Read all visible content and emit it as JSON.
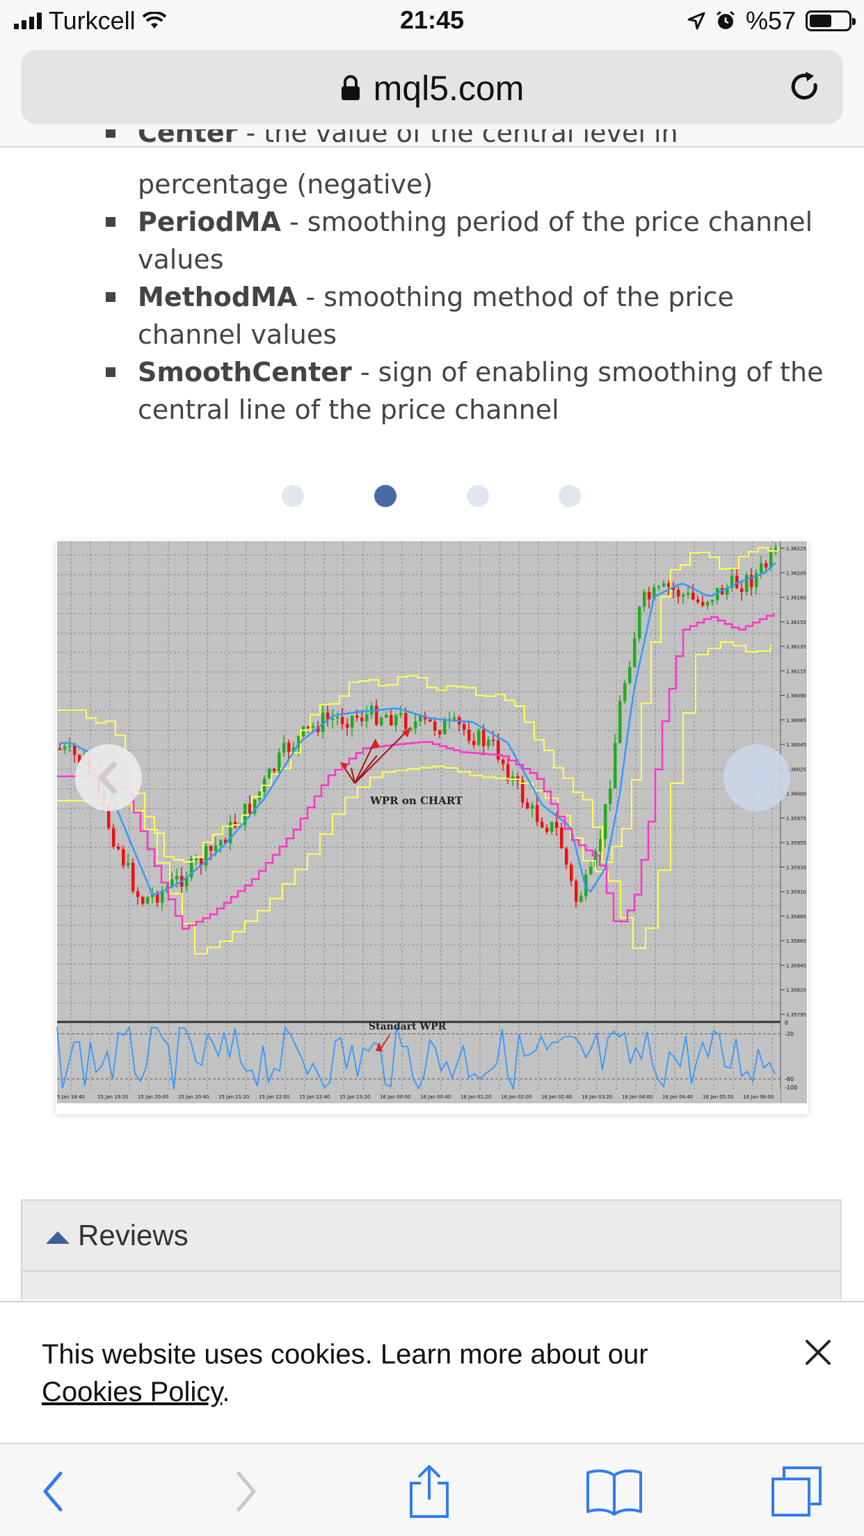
{
  "status_bar": {
    "carrier": "Turkcell",
    "time": "21:45",
    "battery": "%57",
    "battery_level": 0.57
  },
  "url_bar": {
    "domain": "mql5.com"
  },
  "params": {
    "partial": {
      "name": "Center",
      "desc": " - the value of the central level in"
    },
    "items": [
      {
        "name": "",
        "desc": "percentage (negative)"
      },
      {
        "name": "PeriodMA",
        "desc": " - smoothing period of the price channel values"
      },
      {
        "name": "MethodMA",
        "desc": " - smoothing method of the price channel values"
      },
      {
        "name": "SmoothCenter",
        "desc": " - sign of enabling smoothing of the central line of the price channel"
      }
    ]
  },
  "carousel": {
    "active_index": 1,
    "count": 4
  },
  "chart": {
    "main_label": "WPR on CHART",
    "sub_label": "Standart WPR",
    "price_ticks": [
      "1.36225",
      "1.36205",
      "1.36180",
      "1.36155",
      "1.36135",
      "1.36115",
      "1.36090",
      "1.36065",
      "1.36045",
      "1.36025",
      "1.36000",
      "1.35975",
      "1.35955",
      "1.35935",
      "1.35910",
      "1.35885",
      "1.35865",
      "1.35845",
      "1.35820",
      "1.35795"
    ],
    "wpr_ticks": [
      "0",
      "-20",
      "-80",
      "-100"
    ],
    "time_ticks": [
      "5 Jan 18:40",
      "15 Jan 19:20",
      "15 Jan 20:00",
      "15 Jan 20:40",
      "15 Jan 21:20",
      "15 Jan 22:00",
      "15 Jan 22:40",
      "15 Jan 23:20",
      "16 Jan 00:00",
      "16 Jan 00:40",
      "16 Jan 01:20",
      "16 Jan 02:00",
      "16 Jan 02:40",
      "16 Jan 03:20",
      "16 Jan 04:00",
      "16 Jan 04:40",
      "16 Jan 05:20",
      "16 Jan 06:00"
    ],
    "colors": {
      "background": "#c2c2c2",
      "upper_band": "#ffff55",
      "center_line": "#ff33cc",
      "signal_line": "#3399ff",
      "bull": "#22aa22",
      "bear": "#ee1111"
    }
  },
  "reviews": {
    "title": "Reviews"
  },
  "cookie": {
    "text": "This website uses cookies. Learn more about our ",
    "link": "Cookies Policy",
    "suffix": "."
  },
  "icons": {
    "back": "chevron-left-icon",
    "forward": "chevron-right-icon",
    "share": "share-icon",
    "bookmarks": "book-icon",
    "tabs": "tabs-icon"
  }
}
